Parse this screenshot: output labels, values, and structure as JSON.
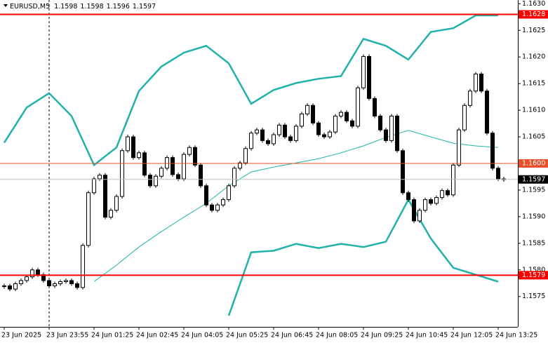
{
  "chart_data": {
    "type": "candlestick",
    "symbol": "EURUSD,M5",
    "ohlc": [
      1.1598,
      1.1598,
      1.1596,
      1.1597
    ],
    "closes": [
      1.1577,
      1.15764,
      1.15774,
      1.1578,
      1.15787,
      1.158,
      1.15791,
      1.1578,
      1.1577,
      1.15774,
      1.15778,
      1.1578,
      1.15774,
      1.15767,
      1.15846,
      1.15945,
      1.15971,
      1.15978,
      1.15899,
      1.15912,
      1.15938,
      1.16024,
      1.1605,
      1.16011,
      1.1602,
      1.15978,
      1.15958,
      1.15976,
      1.15991,
      1.16011,
      1.15979,
      1.15971,
      1.16017,
      1.1603,
      1.15997,
      1.15958,
      1.15922,
      1.15912,
      1.15922,
      1.15932,
      1.15958,
      1.15991,
      1.16001,
      1.16028,
      1.16057,
      1.16063,
      1.16043,
      1.16037,
      1.16054,
      1.16072,
      1.1605,
      1.16043,
      1.1607,
      1.16093,
      1.16109,
      1.16076,
      1.16054,
      1.1605,
      1.16059,
      1.16089,
      1.16096,
      1.1608,
      1.1607,
      1.16142,
      1.16201,
      1.16122,
      1.16089,
      1.16063,
      1.16043,
      1.16089,
      1.16024,
      1.15945,
      1.15932,
      1.15892,
      1.15912,
      1.15932,
      1.15925,
      1.15936,
      1.15949,
      1.15941,
      1.15997,
      1.16063,
      1.16109,
      1.16136,
      1.16168,
      1.16136,
      1.16057,
      1.15991,
      1.15971,
      1.1597
    ],
    "bull_color": "#ffffff",
    "bear_color": "#000000",
    "series": [
      {
        "x": [
          0,
          4,
          8,
          12,
          16,
          20,
          24,
          28,
          32,
          36,
          40,
          44,
          48,
          52,
          56,
          60,
          64,
          68,
          72,
          76,
          80,
          84,
          88
        ],
        "color": "#20b2aa",
        "width": 2.5,
        "values": [
          1.16039,
          1.16105,
          1.16132,
          1.16089,
          1.15997,
          1.1603,
          1.16136,
          1.16182,
          1.16208,
          1.16221,
          1.16188,
          1.16112,
          1.16138,
          1.16151,
          1.16159,
          1.16164,
          1.16234,
          1.16221,
          1.16195,
          1.16247,
          1.16254,
          1.16278,
          1.16278
        ]
      },
      {
        "x": [
          0,
          4,
          8,
          12,
          16,
          20,
          24,
          28,
          32,
          36,
          40,
          44,
          48,
          52,
          56,
          60,
          64,
          68,
          72,
          76,
          80,
          84,
          88
        ],
        "color": "#20b2aa",
        "width": 2.5,
        "values": [
          null,
          null,
          null,
          null,
          null,
          null,
          null,
          null,
          null,
          null,
          1.15714,
          1.15833,
          1.15836,
          1.15849,
          1.15841,
          1.15849,
          1.15843,
          1.15853,
          1.15932,
          1.15859,
          1.15804,
          1.15791,
          1.15778
        ]
      },
      {
        "x": [
          0,
          4,
          8,
          12,
          16,
          20,
          24,
          28,
          32,
          36,
          40,
          44,
          48,
          52,
          56,
          60,
          64,
          68,
          72,
          76,
          80,
          84,
          88
        ],
        "color": "#20b2aa",
        "width": 1,
        "values": [
          null,
          null,
          null,
          null,
          1.15778,
          1.15809,
          1.15843,
          1.15872,
          1.15899,
          1.15925,
          1.15958,
          1.15984,
          1.15993,
          1.16001,
          1.16009,
          1.1602,
          1.16033,
          1.16049,
          1.16062,
          1.1605,
          1.16038,
          1.16033,
          1.1603
        ]
      }
    ],
    "hlines": [
      {
        "value": 1.1628,
        "color": "#ff0000",
        "width": 2
      },
      {
        "value": 1.16,
        "label": "1.1600",
        "color": "#e8502a",
        "width": 1
      },
      {
        "value": 1.1579,
        "color": "#ff0000",
        "width": 2
      },
      {
        "value": 1.1597,
        "color": "#c0c0c0",
        "width": 1,
        "label_bg": "#000000"
      }
    ],
    "xlim": [
      -0.75,
      91.5
    ],
    "ylim": [
      1.15693,
      1.16307
    ],
    "yticks": [
      {
        "value": 1.163,
        "label": "1.1630"
      },
      {
        "value": 1.1625,
        "label": "1.1625"
      },
      {
        "value": 1.162,
        "label": "1.1620"
      },
      {
        "value": 1.1615,
        "label": "1.1615"
      },
      {
        "value": 1.161,
        "label": "1.1610"
      },
      {
        "value": 1.1605,
        "label": "1.1605"
      },
      {
        "value": 1.16,
        "label": "1.1600"
      },
      {
        "value": 1.1595,
        "label": "1.1595"
      },
      {
        "value": 1.159,
        "label": "1.1590"
      },
      {
        "value": 1.1585,
        "label": "1.1585"
      },
      {
        "value": 1.158,
        "label": "1.1580"
      },
      {
        "value": 1.1575,
        "label": "1.1575"
      }
    ],
    "xticks": [
      {
        "value": 0,
        "label": "23 Jun 2025"
      },
      {
        "value": 8,
        "label": "23 Jun 23:55"
      },
      {
        "value": 16,
        "label": "24 Jun 01:25"
      },
      {
        "value": 24,
        "label": "24 Jun 02:45"
      },
      {
        "value": 32,
        "label": "24 Jun 04:05"
      },
      {
        "value": 40,
        "label": "24 Jun 05:25"
      },
      {
        "value": 48,
        "label": "24 Jun 06:45"
      },
      {
        "value": 56,
        "label": "24 Jun 08:05"
      },
      {
        "value": 64,
        "label": "24 Jun 09:25"
      },
      {
        "value": 72,
        "label": "24 Jun 10:45"
      },
      {
        "value": 80,
        "label": "24 Jun 12:05"
      },
      {
        "value": 88,
        "label": "24 Jun 13:25"
      }
    ]
  }
}
